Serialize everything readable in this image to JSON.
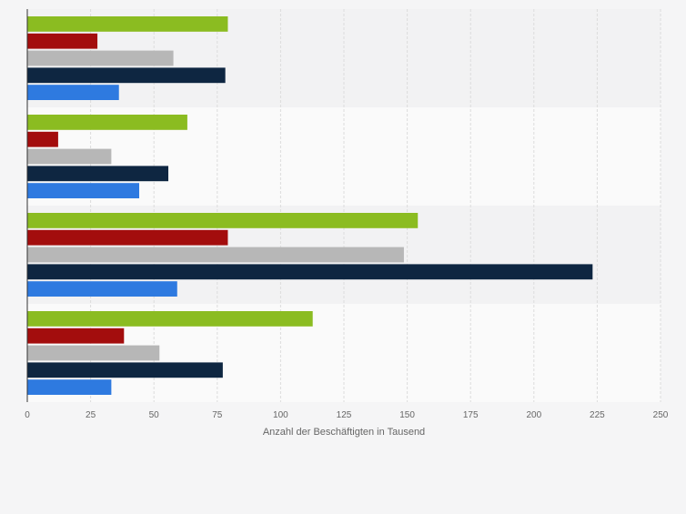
{
  "chart_data": {
    "type": "bar",
    "orientation": "horizontal",
    "xlabel": "Anzahl der Beschäftigten in Tausend",
    "xlim": [
      0,
      250
    ],
    "x_ticks": [
      "0",
      "25",
      "50",
      "75",
      "100",
      "125",
      "150",
      "175",
      "200",
      "225",
      "250"
    ],
    "grid": true,
    "category_labels_visible": false,
    "legend_visible": false,
    "groups": [
      {
        "values": [
          79,
          27.5,
          57.5,
          78,
          36
        ]
      },
      {
        "values": [
          63,
          12,
          33,
          55.5,
          44
        ]
      },
      {
        "values": [
          154,
          79,
          148.5,
          223,
          59
        ]
      },
      {
        "values": [
          112.5,
          38,
          52,
          77,
          33
        ]
      }
    ],
    "series_colors": [
      "#8bbc21",
      "#a30d0d",
      "#b7b7b7",
      "#0e2641",
      "#2e7ae0"
    ]
  }
}
